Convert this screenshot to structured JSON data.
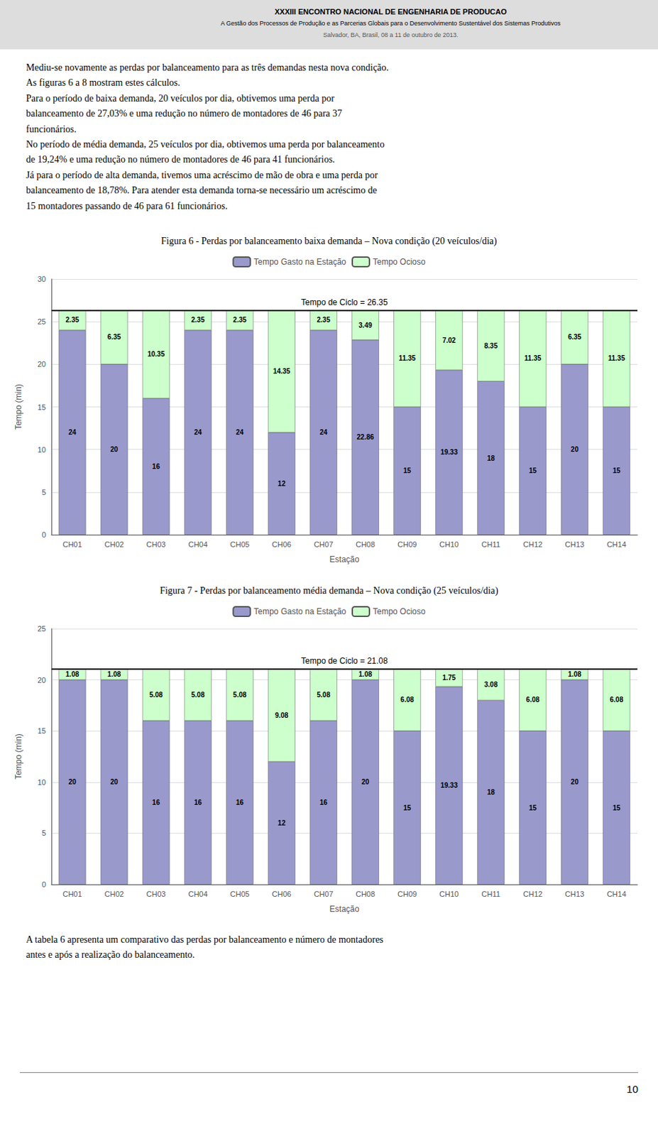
{
  "header_title": "XXXIII ENCONTRO NACIONAL DE ENGENHARIA DE PRODUCAO",
  "header_subtitles": [
    "A Gestão dos Processos de Produção e as Parcerias Globais para o Desenvolvimento Sustentável dos Sistemas Produtivos",
    "Salvador, BA, Brasil, 08 a 11 de outubro de 2013."
  ],
  "body_text": "Mediu-se novamente as perdas por balanceamento para as três demandas nesta nova condição.\nAs figuras 6 a 8 mostram estes cálculos.\nPara o período de baixa demanda, 20 veículos por dia, obtivemos uma perda por\nbalanceamento de 27,03% e uma redução no número de montadores de 46 para 37\nfuncionários.\nNo período de média demanda, 25 veículos por dia, obtivemos uma perda por balanceamento\nde 19,24% e uma redução no número de montadores de 46 para 41 funcionários.\nJá para o período de alta demanda, tivemos uma acréscimo de mão de obra e uma perda por\nbalanceamento de 18,78%. Para atender esta demanda torna-se necessário um acréscimo de\n15 montadores passando de 46 para 61 funcionários.",
  "footer_text": "A tabela 6 apresenta um comparativo das perdas por balanceamento e número de montadores\nantes e após a realização do balanceamento.",
  "page_number": "10",
  "chart_data": [
    {
      "type": "bar",
      "title": "Figura 6 - Perdas por balanceamento baixa demanda – Nova condição (20 veículos/dia)",
      "xlabel": "Estação",
      "ylabel": "Tempo (min)",
      "categories": [
        "CH01",
        "CH02",
        "CH03",
        "CH04",
        "CH05",
        "CH06",
        "CH07",
        "CH08",
        "CH09",
        "CH10",
        "CH11",
        "CH12",
        "CH13",
        "CH14"
      ],
      "series": [
        {
          "name": "Tempo Gasto na Estação",
          "color": "#9999CC",
          "values": [
            24,
            20,
            16,
            24,
            24,
            12,
            24,
            22.86,
            15,
            19.33,
            18,
            15,
            20,
            15
          ]
        },
        {
          "name": "Tempo Ocioso",
          "color": "#CCFFCC",
          "values": [
            2.35,
            6.35,
            10.35,
            2.35,
            2.35,
            14.35,
            2.35,
            3.49,
            11.35,
            7.02,
            8.35,
            11.35,
            6.35,
            11.35
          ]
        }
      ],
      "stacked": true,
      "data_labels": true,
      "ylim": [
        0,
        30
      ],
      "yticks": [
        0,
        5,
        10,
        15,
        20,
        25,
        30
      ],
      "grid": true,
      "legend": "upper center",
      "annotations": [
        {
          "text": "Tempo de Ciclo = 26.35",
          "y": 26.35,
          "color": "#000000"
        }
      ]
    },
    {
      "type": "bar",
      "title": "Figura 7 - Perdas por balanceamento média demanda – Nova condição (25 veículos/dia)",
      "xlabel": "Estação",
      "ylabel": "Tempo (min)",
      "categories": [
        "CH01",
        "CH02",
        "CH03",
        "CH04",
        "CH05",
        "CH06",
        "CH07",
        "CH08",
        "CH09",
        "CH10",
        "CH11",
        "CH12",
        "CH13",
        "CH14"
      ],
      "series": [
        {
          "name": "Tempo Gasto na Estação",
          "color": "#9999CC",
          "values": [
            20,
            20,
            16,
            16,
            16,
            12,
            16,
            20,
            15,
            19.33,
            18,
            15,
            20,
            15
          ]
        },
        {
          "name": "Tempo Ocioso",
          "color": "#CCFFCC",
          "values": [
            1.08,
            1.08,
            5.08,
            5.08,
            5.08,
            9.08,
            5.08,
            1.08,
            6.08,
            1.75,
            3.08,
            6.08,
            1.08,
            6.08
          ]
        }
      ],
      "stacked": true,
      "data_labels": true,
      "ylim": [
        0,
        25
      ],
      "yticks": [
        0,
        5,
        10,
        15,
        20,
        25
      ],
      "grid": true,
      "legend": "upper center",
      "annotations": [
        {
          "text": "Tempo de Ciclo = 21.08",
          "y": 21.08,
          "color": "#000000"
        }
      ]
    }
  ]
}
